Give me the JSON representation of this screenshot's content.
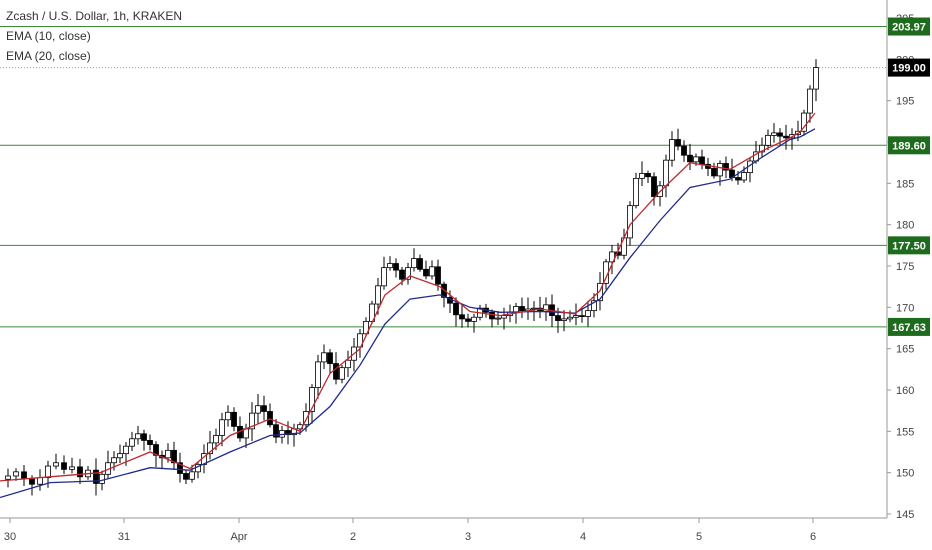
{
  "legend": {
    "symbol": "Zcash / U.S. Dollar, 1h, KRAKEN",
    "ema10": "EMA (10, close)",
    "ema20": "EMA (20, close)"
  },
  "colors": {
    "level_line": "#3a8a3a",
    "level_tag": "#1e6b1e",
    "last_price_tag": "#000000",
    "ema10": "#c0282e",
    "ema20": "#1f2a8c",
    "candle_up_body": "#ffffff",
    "candle_down_body": "#000000",
    "candle_outline": "#000000",
    "grid": "none"
  },
  "chart_data": {
    "type": "candlestick",
    "interval": "1h",
    "ylim": [
      145,
      206
    ],
    "y_ticks": [
      145,
      150,
      155,
      160,
      165,
      170,
      175,
      180,
      185,
      190,
      195,
      200,
      205
    ],
    "x_ticks": [
      "30",
      "31",
      "Apr",
      "2",
      "3",
      "4",
      "5",
      "6"
    ],
    "horizontal_levels": [
      203.97,
      189.6,
      177.5,
      167.63
    ],
    "last_price": 199.0,
    "series": [
      {
        "name": "EMA (10, close)",
        "key": "ema10"
      },
      {
        "name": "EMA (20, close)",
        "key": "ema20"
      }
    ],
    "close_path": [
      [
        0,
        149.2
      ],
      [
        8,
        149.6
      ],
      [
        16,
        150.1
      ],
      [
        24,
        149.3
      ],
      [
        32,
        148.6
      ],
      [
        40,
        149.4
      ],
      [
        48,
        150.8
      ],
      [
        56,
        151.2
      ],
      [
        64,
        150.4
      ],
      [
        72,
        150.7
      ],
      [
        80,
        149.5
      ],
      [
        88,
        150.3
      ],
      [
        96,
        148.7
      ],
      [
        102,
        149.8
      ],
      [
        108,
        151.2
      ],
      [
        114,
        151.8
      ],
      [
        120,
        152.3
      ],
      [
        126,
        153.2
      ],
      [
        132,
        154.1
      ],
      [
        138,
        154.7
      ],
      [
        144,
        153.9
      ],
      [
        150,
        153.4
      ],
      [
        156,
        152.1
      ],
      [
        162,
        151.8
      ],
      [
        168,
        152.7
      ],
      [
        174,
        151.2
      ],
      [
        180,
        149.9
      ],
      [
        186,
        149.2
      ],
      [
        192,
        150.1
      ],
      [
        198,
        151.0
      ],
      [
        204,
        152.3
      ],
      [
        210,
        153.6
      ],
      [
        216,
        154.5
      ],
      [
        222,
        156.4
      ],
      [
        228,
        157.3
      ],
      [
        234,
        155.6
      ],
      [
        240,
        154.2
      ],
      [
        246,
        155.3
      ],
      [
        252,
        157.2
      ],
      [
        258,
        158.1
      ],
      [
        264,
        157.4
      ],
      [
        270,
        155.8
      ],
      [
        276,
        154.3
      ],
      [
        282,
        155.1
      ],
      [
        288,
        154.6
      ],
      [
        294,
        155.3
      ],
      [
        300,
        155.8
      ],
      [
        306,
        157.4
      ],
      [
        312,
        160.3
      ],
      [
        318,
        163.4
      ],
      [
        324,
        164.5
      ],
      [
        330,
        163.2
      ],
      [
        336,
        161.3
      ],
      [
        342,
        162.7
      ],
      [
        348,
        163.6
      ],
      [
        354,
        165.2
      ],
      [
        360,
        166.8
      ],
      [
        366,
        168.3
      ],
      [
        372,
        170.4
      ],
      [
        378,
        172.6
      ],
      [
        384,
        174.8
      ],
      [
        390,
        175.3
      ],
      [
        396,
        174.5
      ],
      [
        402,
        173.4
      ],
      [
        408,
        174.8
      ],
      [
        414,
        175.9
      ],
      [
        420,
        174.6
      ],
      [
        426,
        173.8
      ],
      [
        432,
        174.9
      ],
      [
        438,
        172.8
      ],
      [
        444,
        171.2
      ],
      [
        450,
        170.5
      ],
      [
        456,
        169.1
      ],
      [
        462,
        168.6
      ],
      [
        468,
        168.3
      ],
      [
        474,
        168.8
      ],
      [
        480,
        169.9
      ],
      [
        486,
        169.4
      ],
      [
        492,
        168.6
      ],
      [
        498,
        168.7
      ],
      [
        504,
        169.0
      ],
      [
        510,
        169.4
      ],
      [
        516,
        170.1
      ],
      [
        522,
        169.6
      ],
      [
        528,
        169.8
      ],
      [
        534,
        169.9
      ],
      [
        540,
        169.5
      ],
      [
        546,
        170.3
      ],
      [
        552,
        169.0
      ],
      [
        558,
        168.4
      ],
      [
        564,
        168.6
      ],
      [
        570,
        168.8
      ],
      [
        576,
        169.0
      ],
      [
        582,
        168.9
      ],
      [
        588,
        169.6
      ],
      [
        594,
        170.8
      ],
      [
        600,
        172.9
      ],
      [
        606,
        175.5
      ],
      [
        612,
        176.7
      ],
      [
        618,
        176.3
      ],
      [
        624,
        178.4
      ],
      [
        630,
        182.3
      ],
      [
        636,
        185.6
      ],
      [
        642,
        186.2
      ],
      [
        648,
        185.8
      ],
      [
        654,
        183.4
      ],
      [
        660,
        184.7
      ],
      [
        666,
        187.8
      ],
      [
        672,
        190.3
      ],
      [
        678,
        189.5
      ],
      [
        684,
        188.4
      ],
      [
        690,
        187.6
      ],
      [
        696,
        188.2
      ],
      [
        702,
        187.3
      ],
      [
        708,
        186.8
      ],
      [
        714,
        185.9
      ],
      [
        720,
        187.4
      ],
      [
        726,
        186.6
      ],
      [
        732,
        185.7
      ],
      [
        738,
        185.4
      ],
      [
        744,
        186.3
      ],
      [
        750,
        187.7
      ],
      [
        756,
        188.8
      ],
      [
        762,
        189.6
      ],
      [
        768,
        190.8
      ],
      [
        774,
        191.1
      ],
      [
        780,
        190.7
      ],
      [
        786,
        190.5
      ],
      [
        792,
        190.9
      ],
      [
        798,
        191.3
      ],
      [
        804,
        193.5
      ],
      [
        810,
        196.4
      ],
      [
        816,
        199.0
      ]
    ],
    "ema_control": {
      "ema10": [
        [
          0,
          149.0
        ],
        [
          50,
          149.5
        ],
        [
          100,
          150.0
        ],
        [
          150,
          152.5
        ],
        [
          190,
          150.5
        ],
        [
          230,
          154.5
        ],
        [
          270,
          156.5
        ],
        [
          300,
          155.0
        ],
        [
          330,
          162.0
        ],
        [
          360,
          165.0
        ],
        [
          385,
          171.5
        ],
        [
          410,
          173.8
        ],
        [
          440,
          172.5
        ],
        [
          470,
          169.5
        ],
        [
          500,
          169.0
        ],
        [
          540,
          169.8
        ],
        [
          575,
          169.2
        ],
        [
          600,
          172.0
        ],
        [
          630,
          180.0
        ],
        [
          660,
          184.0
        ],
        [
          690,
          187.5
        ],
        [
          730,
          186.7
        ],
        [
          760,
          188.8
        ],
        [
          790,
          190.5
        ],
        [
          800,
          191.2
        ],
        [
          815,
          193.5
        ]
      ],
      "ema20": [
        [
          0,
          147.0
        ],
        [
          50,
          148.8
        ],
        [
          100,
          149.0
        ],
        [
          150,
          150.6
        ],
        [
          190,
          150.3
        ],
        [
          230,
          152.5
        ],
        [
          270,
          154.5
        ],
        [
          300,
          154.8
        ],
        [
          330,
          158.0
        ],
        [
          360,
          163.0
        ],
        [
          385,
          168.0
        ],
        [
          410,
          171.0
        ],
        [
          440,
          171.5
        ],
        [
          470,
          170.0
        ],
        [
          500,
          169.4
        ],
        [
          540,
          169.5
        ],
        [
          575,
          169.3
        ],
        [
          600,
          171.0
        ],
        [
          630,
          176.0
        ],
        [
          660,
          180.5
        ],
        [
          690,
          184.5
        ],
        [
          730,
          185.5
        ],
        [
          760,
          188.0
        ],
        [
          790,
          190.3
        ],
        [
          800,
          190.6
        ],
        [
          815,
          191.6
        ]
      ]
    }
  }
}
